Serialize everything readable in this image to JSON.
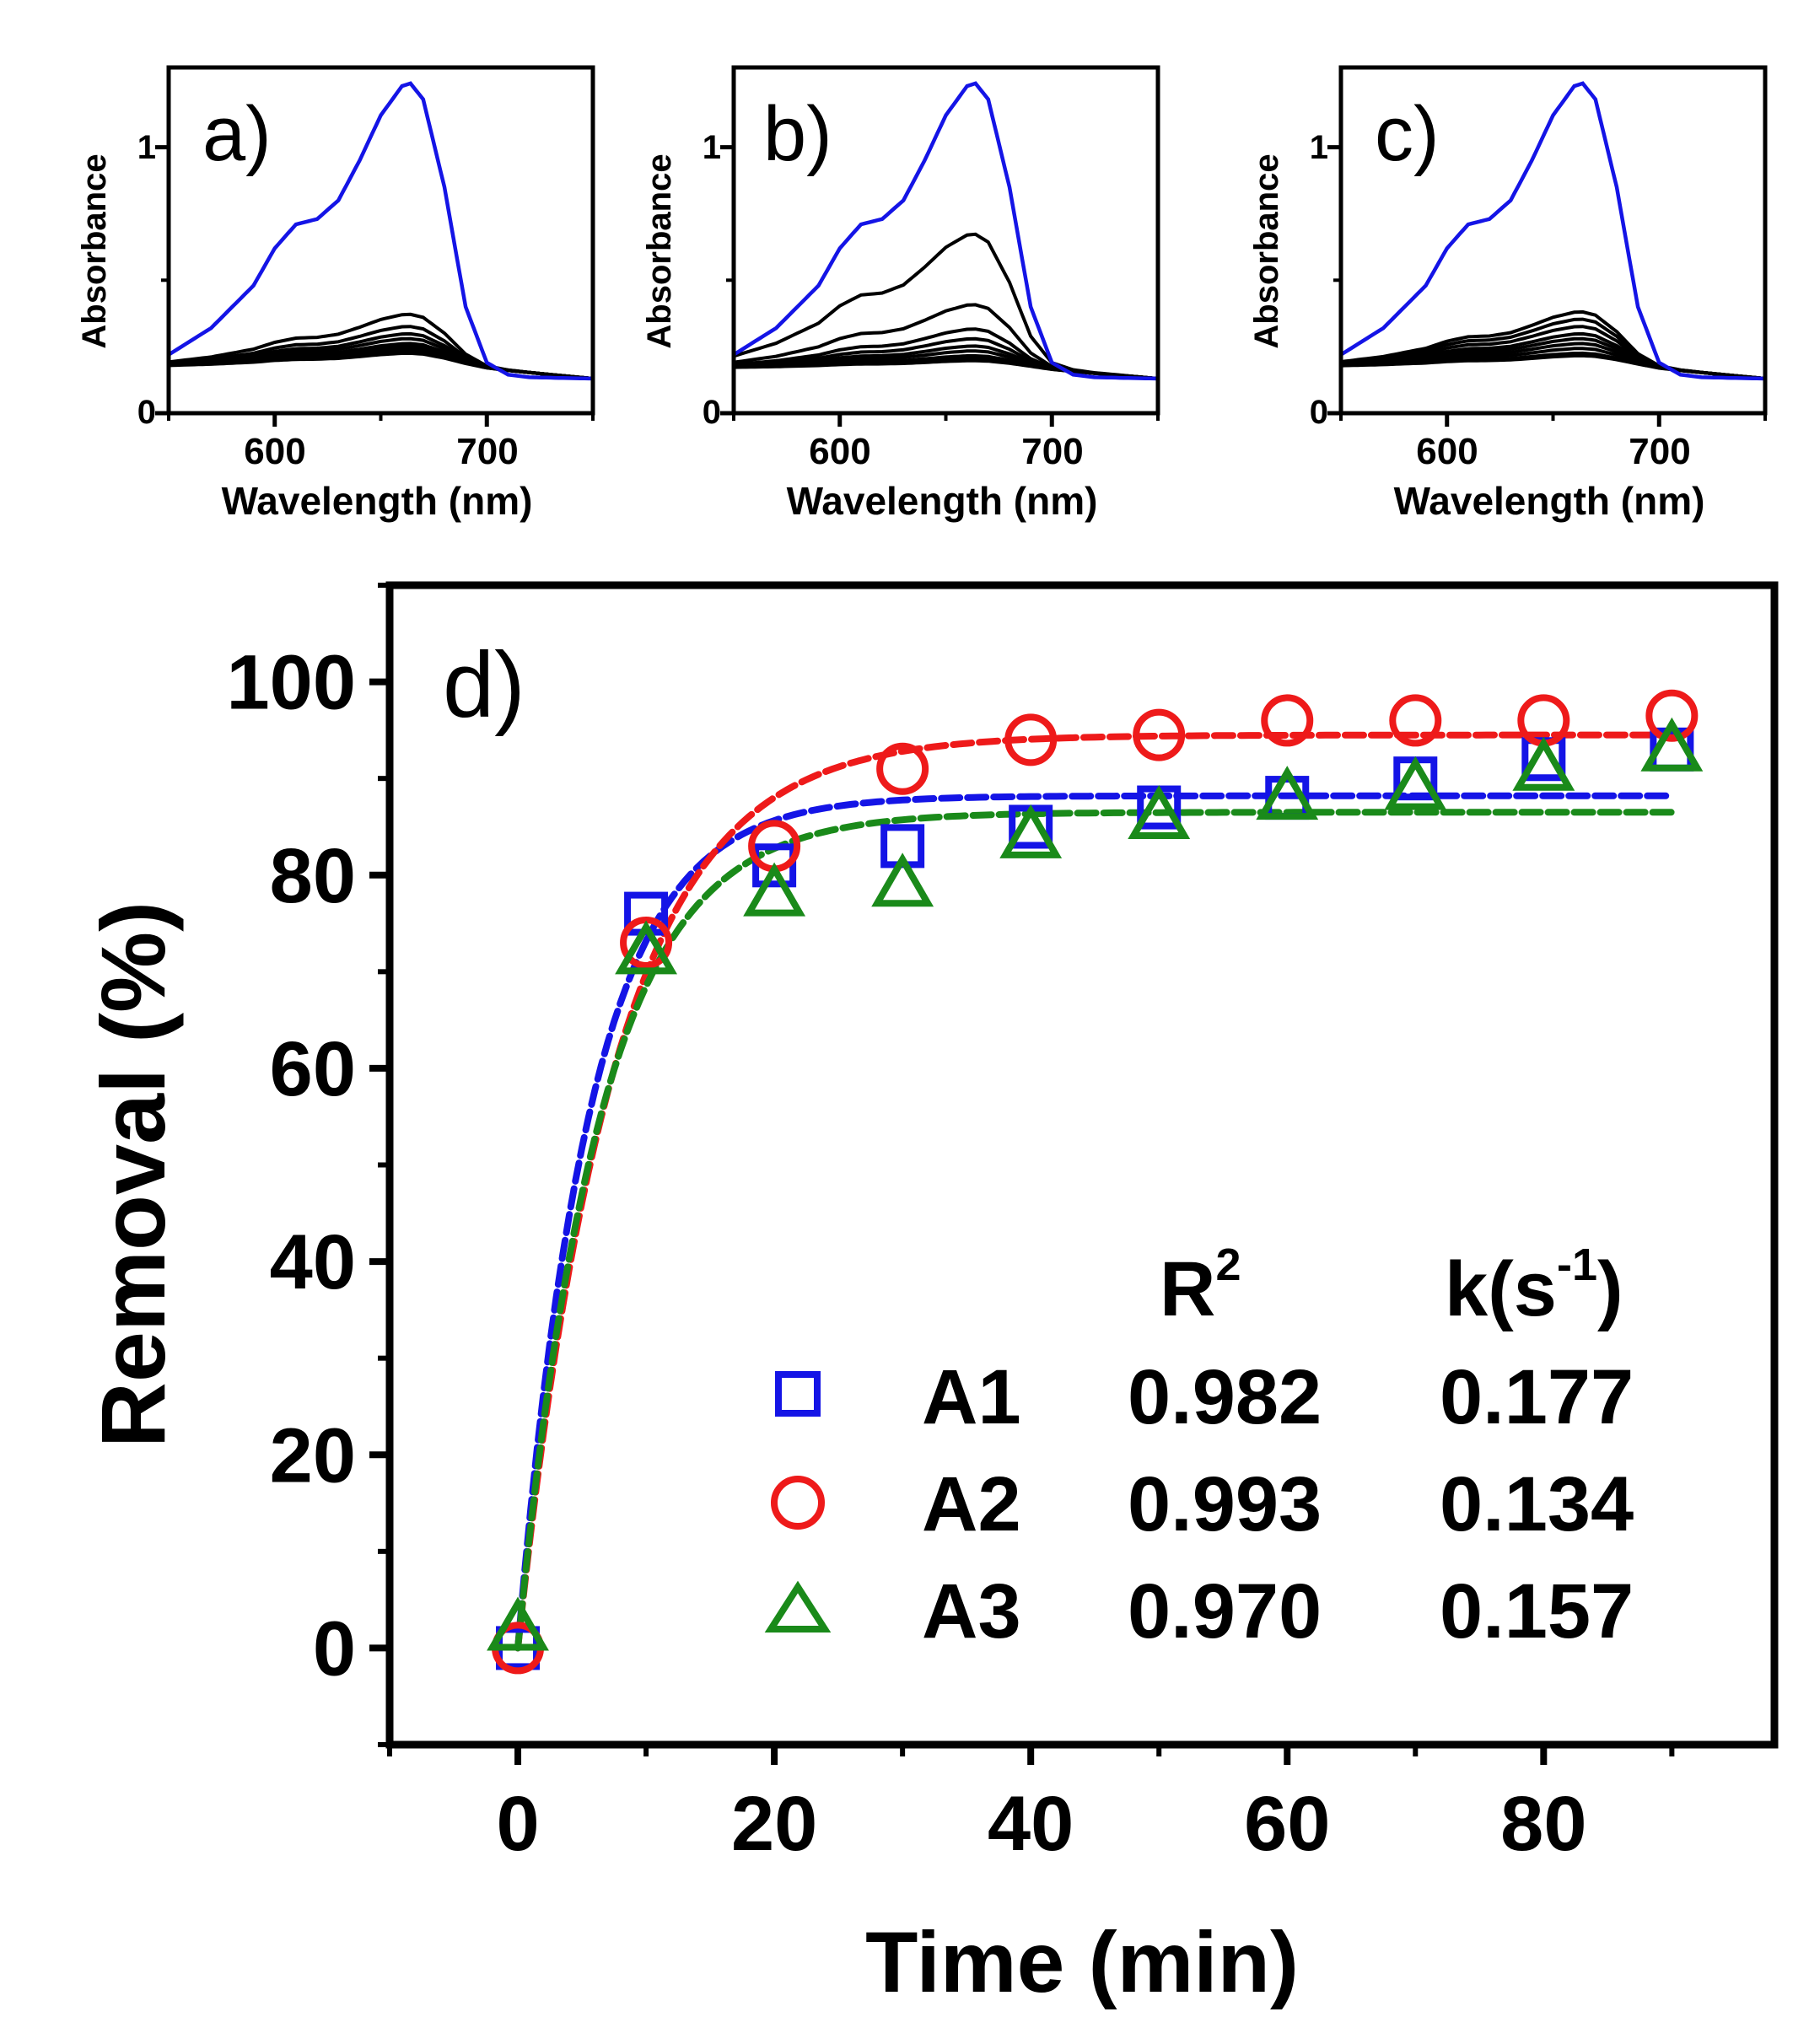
{
  "colors": {
    "axis": "#000000",
    "blue": "#1414e6",
    "red": "#ee1a1a",
    "green": "#1a8a1a",
    "spectrum_initial": "#1414e6",
    "spectrum_other": "#000000"
  },
  "chart_data": [
    {
      "id": "a",
      "type": "line",
      "panel_label": "a)",
      "xlabel": "Wavelength (nm)",
      "ylabel": "Absorbance",
      "xlim": [
        550,
        750
      ],
      "ylim": [
        0,
        1.3
      ],
      "xticks": [
        600,
        700
      ],
      "xtick_labels": [
        "600",
        "700"
      ],
      "yticks": [
        0,
        1
      ],
      "ytick_labels": [
        "0",
        "1"
      ],
      "initial_spectrum": {
        "name": "initial",
        "x": [
          550,
          570,
          590,
          600,
          610,
          620,
          630,
          640,
          650,
          660,
          664,
          670,
          680,
          690,
          700,
          710,
          720,
          750
        ],
        "y": [
          0.22,
          0.32,
          0.48,
          0.62,
          0.71,
          0.73,
          0.8,
          0.95,
          1.12,
          1.23,
          1.24,
          1.18,
          0.85,
          0.4,
          0.19,
          0.145,
          0.135,
          0.13
        ]
      },
      "spectra_peaks": [
        0.39,
        0.34,
        0.31,
        0.29,
        0.27,
        0.26,
        0.25,
        0.24,
        0.23
      ],
      "spectra_base": 0.175,
      "spectra_end": 0.13
    },
    {
      "id": "b",
      "type": "line",
      "panel_label": "b)",
      "xlabel": "Wavelength (nm)",
      "ylabel": "Absorbance",
      "xlim": [
        550,
        750
      ],
      "ylim": [
        0,
        1.3
      ],
      "xticks": [
        600,
        700
      ],
      "xtick_labels": [
        "600",
        "700"
      ],
      "yticks": [
        0,
        1
      ],
      "ytick_labels": [
        "0",
        "1"
      ],
      "initial_spectrum": {
        "name": "initial",
        "x": [
          550,
          570,
          590,
          600,
          610,
          620,
          630,
          640,
          650,
          660,
          664,
          670,
          680,
          690,
          700,
          710,
          720,
          750
        ],
        "y": [
          0.22,
          0.32,
          0.48,
          0.62,
          0.71,
          0.73,
          0.8,
          0.95,
          1.12,
          1.23,
          1.24,
          1.18,
          0.85,
          0.4,
          0.19,
          0.145,
          0.135,
          0.13
        ]
      },
      "spectra_peaks": [
        0.72,
        0.43,
        0.33,
        0.29,
        0.26,
        0.24,
        0.22,
        0.21,
        0.2
      ],
      "spectra_base": 0.17,
      "spectra_end": 0.13
    },
    {
      "id": "c",
      "type": "line",
      "panel_label": "c)",
      "xlabel": "Wavelength (nm)",
      "ylabel": "Absorbance",
      "xlim": [
        550,
        750
      ],
      "ylim": [
        0,
        1.3
      ],
      "xticks": [
        600,
        700
      ],
      "xtick_labels": [
        "600",
        "700"
      ],
      "yticks": [
        0,
        1
      ],
      "ytick_labels": [
        "0",
        "1"
      ],
      "initial_spectrum": {
        "name": "initial",
        "x": [
          550,
          570,
          590,
          600,
          610,
          620,
          630,
          640,
          650,
          660,
          664,
          670,
          680,
          690,
          700,
          710,
          720,
          750
        ],
        "y": [
          0.22,
          0.32,
          0.48,
          0.62,
          0.71,
          0.73,
          0.8,
          0.95,
          1.12,
          1.23,
          1.24,
          1.18,
          0.85,
          0.4,
          0.19,
          0.145,
          0.135,
          0.13
        ]
      },
      "spectra_peaks": [
        0.4,
        0.37,
        0.34,
        0.31,
        0.29,
        0.27,
        0.25,
        0.23,
        0.22
      ],
      "spectra_base": 0.175,
      "spectra_end": 0.13
    },
    {
      "id": "d",
      "type": "scatter",
      "panel_label": "d)",
      "xlabel": "Time (min)",
      "ylabel": "Removal (%)",
      "xlim": [
        -10,
        98
      ],
      "ylim": [
        -10,
        110
      ],
      "xticks": [
        0,
        20,
        40,
        60,
        80
      ],
      "xtick_labels": [
        "0",
        "20",
        "40",
        "60",
        "80"
      ],
      "yticks": [
        0,
        20,
        40,
        60,
        80,
        100
      ],
      "ytick_labels": [
        "0",
        "20",
        "40",
        "60",
        "80",
        "100"
      ],
      "x": [
        0,
        10,
        20,
        30,
        40,
        50,
        60,
        70,
        80,
        90
      ],
      "series": [
        {
          "name": "A1",
          "marker": "square",
          "color": "blue",
          "values": [
            0,
            76,
            81,
            83,
            85,
            87,
            88,
            90,
            92,
            93
          ],
          "fit_plateau": 88.2,
          "fit_rate": 0.177,
          "r2": "0.982",
          "k": "0.177"
        },
        {
          "name": "A2",
          "marker": "circle",
          "color": "red",
          "values": [
            0,
            73,
            83,
            91,
            94,
            94.5,
            96,
            96,
            96,
            96.5
          ],
          "fit_plateau": 94.5,
          "fit_rate": 0.134,
          "r2": "0.993",
          "k": "0.134"
        },
        {
          "name": "A3",
          "marker": "triangle",
          "color": "green",
          "values": [
            2,
            72,
            78,
            79,
            84,
            86,
            88,
            89,
            91,
            93
          ],
          "fit_plateau": 86.5,
          "fit_rate": 0.157,
          "r2": "0.970",
          "k": "0.157"
        }
      ],
      "legend": {
        "header_r": "R",
        "header_r_sup": "2",
        "header_k_pre": "k(s",
        "header_k_sup": "-1",
        "header_k_post": ")"
      }
    }
  ]
}
